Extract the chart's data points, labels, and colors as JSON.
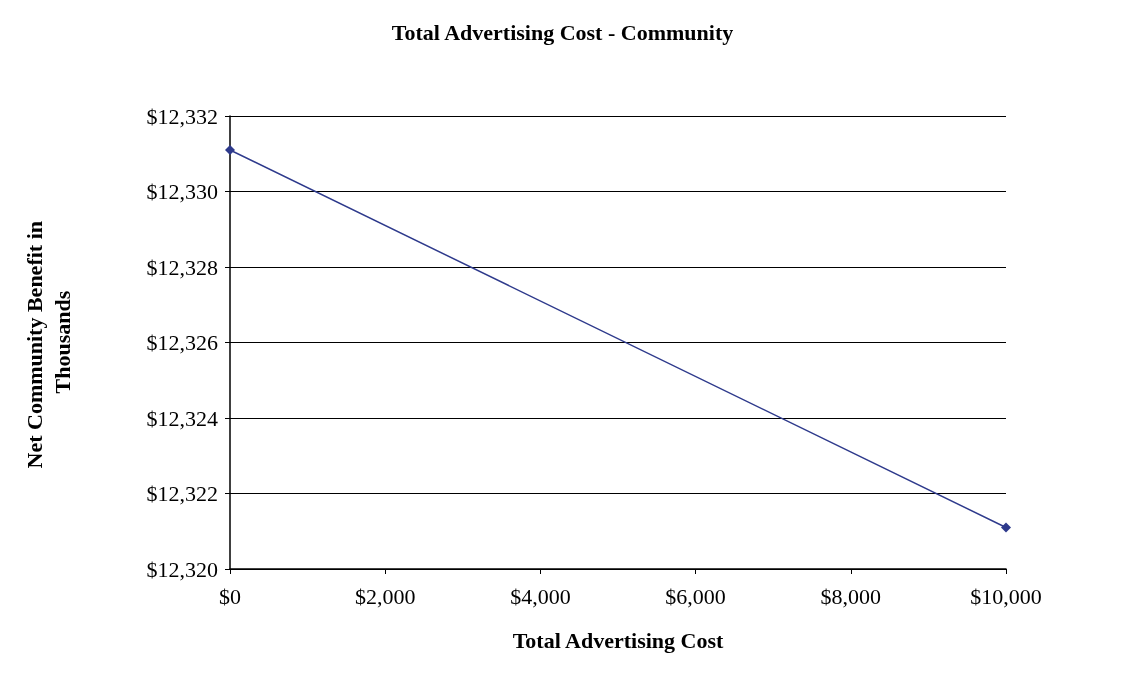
{
  "chart_data": {
    "type": "line",
    "title": "Total Advertising Cost - Community",
    "xlabel": "Total Advertising Cost",
    "ylabel": "Net Community Benefit in Thousands",
    "x": [
      0,
      10000
    ],
    "series": [
      {
        "color": "#2e3a8c",
        "values": [
          12331.1,
          12321.1
        ]
      }
    ],
    "xlim": [
      0,
      10000
    ],
    "xticks": [
      {
        "value": 0,
        "label": "$0"
      },
      {
        "value": 2000,
        "label": "$2,000"
      },
      {
        "value": 4000,
        "label": "$4,000"
      },
      {
        "value": 6000,
        "label": "$6,000"
      },
      {
        "value": 8000,
        "label": "$8,000"
      },
      {
        "value": 10000,
        "label": "$10,000"
      }
    ],
    "ylim": [
      12320,
      12332
    ],
    "yticks": [
      {
        "value": 12320,
        "label": "$12,320"
      },
      {
        "value": 12322,
        "label": "$12,322"
      },
      {
        "value": 12324,
        "label": "$12,324"
      },
      {
        "value": 12326,
        "label": "$12,326"
      },
      {
        "value": 12328,
        "label": "$12,328"
      },
      {
        "value": 12330,
        "label": "$12,330"
      },
      {
        "value": 12332,
        "label": "$12,332"
      }
    ],
    "grid": "y",
    "marker": "diamond",
    "line_style": "solid"
  }
}
